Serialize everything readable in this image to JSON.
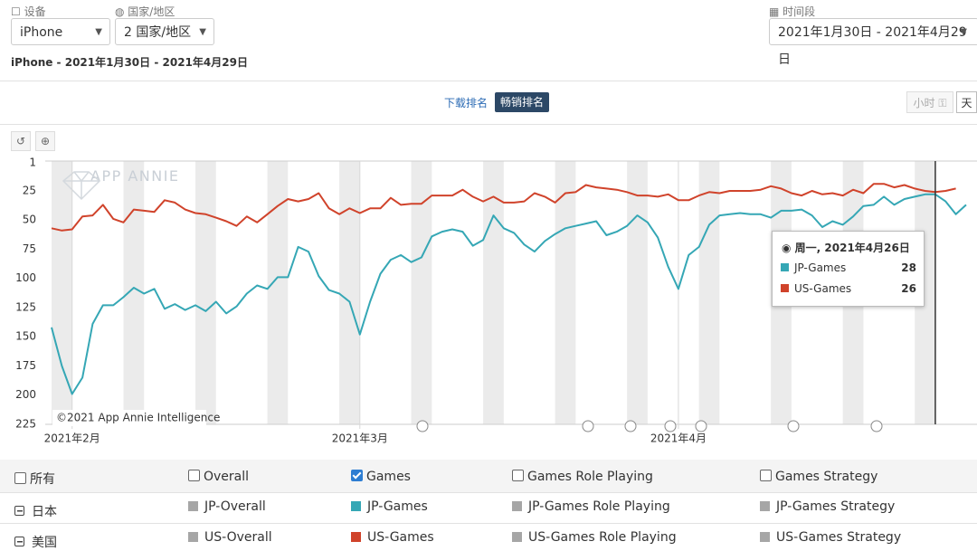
{
  "filters": {
    "device_label": "设备",
    "device": "iPhone",
    "country_label": "国家/地区",
    "country": "2 国家/地区",
    "period_label": "时间段",
    "period": "2021年1月30日 - 2021年4月29日"
  },
  "subtitle": "iPhone - 2021年1月30日 - 2021年4月29日",
  "tabs": [
    "下载排名",
    "畅销排名"
  ],
  "granularity": [
    "小时",
    "天"
  ],
  "chart_data": {
    "type": "line",
    "watermark": "APP ANNIE",
    "credit": "©2021 App Annie Intelligence",
    "x": [
      "2021-01-30",
      "2021-01-31",
      "2021-02-01",
      "2021-02-02",
      "2021-02-03",
      "2021-02-04",
      "2021-02-05",
      "2021-02-06",
      "2021-02-07",
      "2021-02-08",
      "2021-02-09",
      "2021-02-10",
      "2021-02-11",
      "2021-02-12",
      "2021-02-13",
      "2021-02-14",
      "2021-02-15",
      "2021-02-16",
      "2021-02-17",
      "2021-02-18",
      "2021-02-19",
      "2021-02-20",
      "2021-02-21",
      "2021-02-22",
      "2021-02-23",
      "2021-02-24",
      "2021-02-25",
      "2021-02-26",
      "2021-02-27",
      "2021-02-28",
      "2021-03-01",
      "2021-03-02",
      "2021-03-03",
      "2021-03-04",
      "2021-03-05",
      "2021-03-06",
      "2021-03-07",
      "2021-03-08",
      "2021-03-09",
      "2021-03-10",
      "2021-03-11",
      "2021-03-12",
      "2021-03-13",
      "2021-03-14",
      "2021-03-15",
      "2021-03-16",
      "2021-03-17",
      "2021-03-18",
      "2021-03-19",
      "2021-03-20",
      "2021-03-21",
      "2021-03-22",
      "2021-03-23",
      "2021-03-24",
      "2021-03-25",
      "2021-03-26",
      "2021-03-27",
      "2021-03-28",
      "2021-03-29",
      "2021-03-30",
      "2021-03-31",
      "2021-04-01",
      "2021-04-02",
      "2021-04-03",
      "2021-04-04",
      "2021-04-05",
      "2021-04-06",
      "2021-04-07",
      "2021-04-08",
      "2021-04-09",
      "2021-04-10",
      "2021-04-11",
      "2021-04-12",
      "2021-04-13",
      "2021-04-14",
      "2021-04-15",
      "2021-04-16",
      "2021-04-17",
      "2021-04-18",
      "2021-04-19",
      "2021-04-20",
      "2021-04-21",
      "2021-04-22",
      "2021-04-23",
      "2021-04-24",
      "2021-04-25",
      "2021-04-26",
      "2021-04-27",
      "2021-04-28",
      "2021-04-29"
    ],
    "xlim": [
      "2021-01-30",
      "2021-04-29"
    ],
    "xticks": [
      {
        "value": "2021-02-01",
        "label": "2021年2月"
      },
      {
        "value": "2021-03-01",
        "label": "2021年3月"
      },
      {
        "value": "2021-04-01",
        "label": "2021年4月"
      }
    ],
    "ylim": [
      225,
      1
    ],
    "yticks": [
      1,
      25,
      50,
      75,
      100,
      125,
      150,
      175,
      200,
      225
    ],
    "grid": false,
    "series": [
      {
        "name": "JP-Games",
        "color": "#35a7b5",
        "values": [
          142,
          175,
          199,
          185,
          139,
          123,
          123,
          116,
          108,
          113,
          109,
          126,
          122,
          127,
          123,
          128,
          120,
          130,
          124,
          113,
          106,
          109,
          99,
          99,
          73,
          77,
          98,
          110,
          113,
          120,
          148,
          120,
          96,
          84,
          80,
          86,
          82,
          64,
          60,
          58,
          60,
          72,
          67,
          46,
          57,
          61,
          71,
          77,
          68,
          62,
          57,
          55,
          53,
          51,
          63,
          60,
          55,
          46,
          52,
          65,
          90,
          109,
          80,
          73,
          54,
          46,
          45,
          44,
          45,
          45,
          48,
          42,
          42,
          41,
          46,
          56,
          51,
          54,
          47,
          38,
          37,
          30,
          37,
          32,
          30,
          28,
          28,
          34,
          45,
          37
        ]
      },
      {
        "name": "US-Games",
        "color": "#d0432b",
        "values": [
          57,
          59,
          58,
          47,
          46,
          37,
          49,
          52,
          41,
          42,
          43,
          33,
          35,
          41,
          44,
          45,
          48,
          51,
          55,
          47,
          52,
          45,
          38,
          32,
          34,
          32,
          27,
          40,
          45,
          40,
          44,
          40,
          40,
          31,
          37,
          36,
          36,
          29,
          29,
          29,
          24,
          30,
          34,
          30,
          35,
          35,
          34,
          27,
          30,
          35,
          27,
          26,
          20,
          22,
          23,
          24,
          26,
          29,
          29,
          30,
          28,
          33,
          33,
          29,
          26,
          27,
          25,
          25,
          25,
          24,
          21,
          23,
          27,
          29,
          25,
          28,
          27,
          29,
          24,
          27,
          19,
          19,
          22,
          20,
          23,
          25,
          26,
          25,
          23,
          null
        ]
      }
    ],
    "tooltip": {
      "title": "周一, 2021年4月26日",
      "index": 86
    }
  },
  "legend_table": {
    "inactive_color": "#a6a6a6",
    "header": [
      "所有",
      "Overall",
      "Games",
      "Games Role Playing",
      "Games Strategy"
    ],
    "checked": [
      false,
      false,
      true,
      false,
      false
    ],
    "rows": [
      {
        "label": "日本",
        "items": [
          "JP-Overall",
          "JP-Games",
          "JP-Games Role Playing",
          "JP-Games Strategy"
        ]
      },
      {
        "label": "美国",
        "items": [
          "US-Overall",
          "US-Games",
          "US-Games Role Playing",
          "US-Games Strategy"
        ]
      }
    ]
  }
}
